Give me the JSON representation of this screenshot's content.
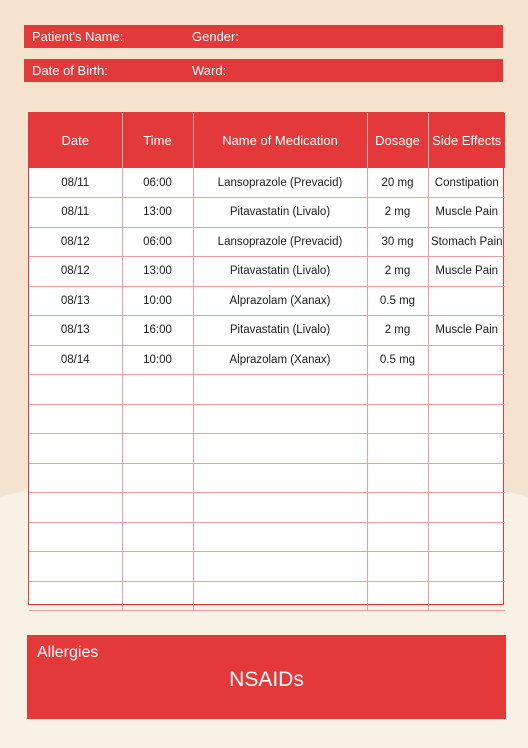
{
  "header": {
    "patient_name_label": "Patient's Name:",
    "gender_label": "Gender:",
    "dob_label": "Date of Birth:",
    "ward_label": "Ward:"
  },
  "table": {
    "columns": [
      "Date",
      "Time",
      "Name of Medication",
      "Dosage",
      "Side Effects"
    ],
    "rows": [
      [
        "08/11",
        "06:00",
        "Lansoprazole (Prevacid)",
        "20 mg",
        "Constipation"
      ],
      [
        "08/11",
        "13:00",
        "Pitavastatin (Livalo)",
        "2 mg",
        "Muscle Pain"
      ],
      [
        "08/12",
        "06:00",
        "Lansoprazole (Prevacid)",
        "30 mg",
        "Stomach Pain"
      ],
      [
        "08/12",
        "13:00",
        "Pitavastatin (Livalo)",
        "2 mg",
        "Muscle Pain"
      ],
      [
        "08/13",
        "10:00",
        "Alprazolam (Xanax)",
        "0.5 mg",
        ""
      ],
      [
        "08/13",
        "16:00",
        "Pitavastatin (Livalo)",
        "2 mg",
        "Muscle Pain"
      ],
      [
        "08/14",
        "10:00",
        "Alprazolam (Xanax)",
        "0.5 mg",
        ""
      ],
      [
        "",
        "",
        "",
        "",
        ""
      ],
      [
        "",
        "",
        "",
        "",
        ""
      ],
      [
        "",
        "",
        "",
        "",
        ""
      ],
      [
        "",
        "",
        "",
        "",
        ""
      ],
      [
        "",
        "",
        "",
        "",
        ""
      ],
      [
        "",
        "",
        "",
        "",
        ""
      ],
      [
        "",
        "",
        "",
        "",
        ""
      ],
      [
        "",
        "",
        "",
        "",
        ""
      ]
    ]
  },
  "allergies": {
    "title": "Allergies",
    "value": "NSAIDs"
  },
  "colors": {
    "accent": "#e3393b",
    "background": "#f5e3cf",
    "background_lower": "#f8f1e6"
  }
}
